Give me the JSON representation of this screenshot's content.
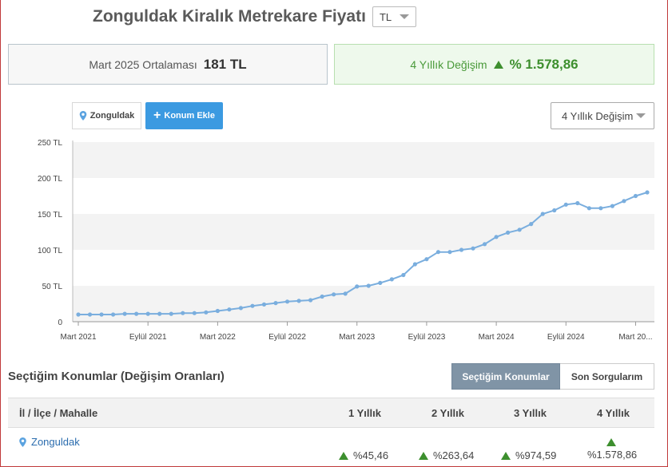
{
  "header": {
    "title": "Zonguldak Kiralık Metrekare Fiyatı",
    "currency": "TL"
  },
  "summary": {
    "avg_label": "Mart 2025 Ortalaması",
    "avg_value": "181 TL",
    "change_label": "4 Yıllık Değişim",
    "change_value": "% 1.578,86"
  },
  "controls": {
    "location_chip": "Zonguldak",
    "add_location": "Konum Ekle",
    "period": "4 Yıllık Değişim"
  },
  "colors": {
    "line": "#7aaede",
    "positive": "#3d8f2e",
    "band": "#f3f3f3"
  },
  "chart_data": {
    "type": "line",
    "y_tick_labels": [
      "0",
      "50 TL",
      "100 TL",
      "150 TL",
      "200 TL",
      "250 TL"
    ],
    "y_ticks": [
      0,
      50,
      100,
      150,
      200,
      250
    ],
    "ylim": [
      0,
      250
    ],
    "x_tick_labels": [
      "Mart 2021",
      "Eylül 2021",
      "Mart 2022",
      "Eylül 2022",
      "Mart 2023",
      "Eylül 2023",
      "Mart 2024",
      "Eylül 2024",
      "Mart 20..."
    ],
    "x_tick_index": [
      0,
      6,
      12,
      18,
      24,
      30,
      36,
      42,
      48
    ],
    "values": [
      10,
      10,
      10,
      10,
      11,
      11,
      11,
      11,
      11,
      12,
      12,
      13,
      15,
      17,
      19,
      22,
      24,
      26,
      28,
      29,
      30,
      35,
      38,
      39,
      49,
      50,
      54,
      59,
      65,
      80,
      87,
      97,
      97,
      100,
      102,
      108,
      118,
      124,
      128,
      136,
      150,
      155,
      163,
      165,
      158,
      158,
      161,
      168,
      175,
      180
    ],
    "grid": true
  },
  "section": {
    "title": "Seçtiğim Konumlar (Değişim Oranları)",
    "tab_selected": "Seçtiğim Konumlar",
    "tab_recent": "Son Sorgularım"
  },
  "table": {
    "headers": [
      "İl / İlçe / Mahalle",
      "1 Yıllık",
      "2 Yıllık",
      "3 Yıllık",
      "4 Yıllık"
    ],
    "rows": [
      {
        "name": "Zonguldak",
        "y1": "%45,46",
        "y2": "%263,64",
        "y3": "%974,59",
        "y4": "%1.578,86"
      }
    ]
  }
}
